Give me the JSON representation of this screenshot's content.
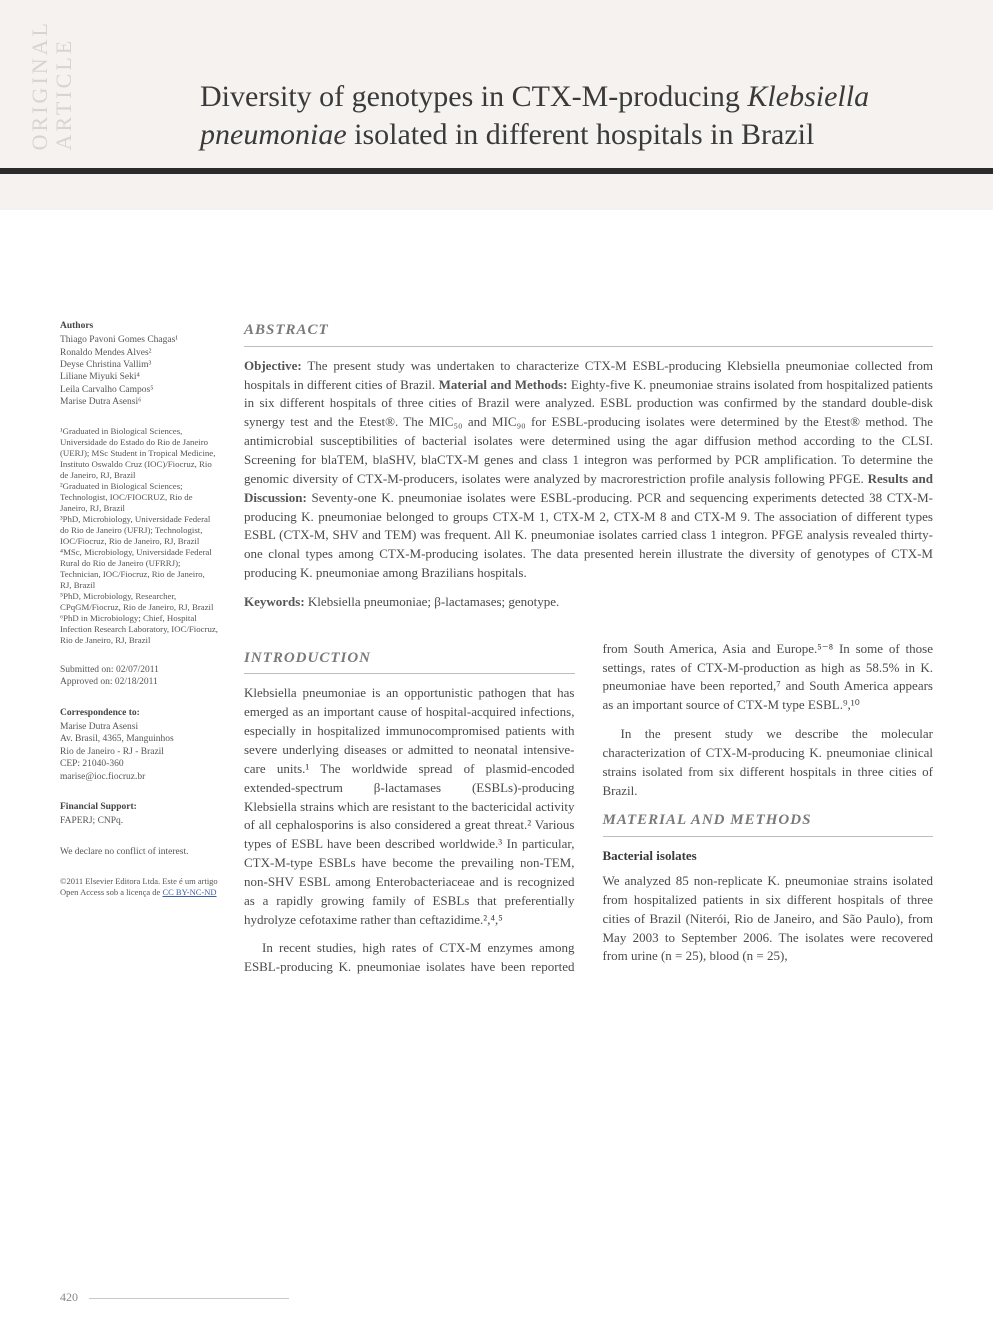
{
  "colors": {
    "page_bg": "#ffffff",
    "band_bg": "#f5f2f0",
    "rule": "#2b2b2b",
    "body_text": "#4a4a4a",
    "sidebar_text": "#555555",
    "heading_gray": "#7a7a7a",
    "divider": "#bdbdbd",
    "sidetab": "#d8d4d0",
    "link": "#3a5fa8"
  },
  "typography": {
    "title_fontsize_pt": 22,
    "body_fontsize_pt": 10,
    "sidebar_fontsize_pt": 7,
    "section_head_fontsize_pt": 11
  },
  "side_tab": {
    "line1": "ORIGINAL",
    "line2": "ARTICLE"
  },
  "title": {
    "plain1": "Diversity of genotypes in CTX-M-producing ",
    "ital1": "Klebsiella pneumoniae",
    "plain2": " isolated in different hospitals in Brazil"
  },
  "sidebar": {
    "authors_head": "Authors",
    "authors": "Thiago Pavoni Gomes Chagas¹\nRonaldo Mendes Alves²\nDeyse Christina Vallim³\nLiliane Miyuki Seki⁴\nLeila Carvalho Campos⁵\nMarise Dutra Asensi⁶",
    "affiliations": "¹Graduated in Biological Sciences, Universidade do Estado do Rio de Janeiro (UERJ); MSc Student in Tropical Medicine, Instituto Oswaldo Cruz (IOC)/Fiocruz, Rio de Janeiro, RJ, Brazil\n²Graduated in Biological Sciences; Technologist, IOC/FIOCRUZ, Rio de Janeiro, RJ, Brazil\n³PhD, Microbiology, Universidade Federal do Rio de Janeiro (UFRJ); Technologist, IOC/Fiocruz, Rio de Janeiro, RJ, Brazil\n⁴MSc, Microbiology, Universidade Federal Rural do Rio de Janeiro (UFRRJ); Technician, IOC/Fiocruz, Rio de Janeiro, RJ, Brazil\n⁵PhD, Microbiology, Researcher, CPqGM/Fiocruz, Rio de Janeiro, RJ, Brazil\n⁶PhD in Microbiology; Chief, Hospital Infection Research Laboratory, IOC/Fiocruz, Rio de Janeiro, RJ, Brazil",
    "submitted": "Submitted on: 02/07/2011\nApproved on: 02/18/2011",
    "correspondence_head": "Correspondence to:",
    "correspondence": "Marise Dutra Asensi\nAv. Brasil, 4365, Manguinhos\nRio de Janeiro - RJ - Brazil\nCEP: 21040-360\nmarise@ioc.fiocruz.br",
    "support_head": "Financial Support:",
    "support": "FAPERJ; CNPq.",
    "conflict": "We declare no conflict of interest.",
    "copyright_pre": "©2011 Elsevier Editora Ltda. Este é um artigo Open Access sob a licença de ",
    "copyright_link": "CC BY-NC-ND"
  },
  "abstract": {
    "head": "ABSTRACT",
    "objective_lead": "Objective:",
    "objective": " The present study was undertaken to characterize CTX-M ESBL-producing Klebsiella pneumoniae collected from hospitals in different cities of Brazil. ",
    "methods_lead": "Material and Methods:",
    "methods": " Eighty-five K. pneumoniae strains isolated from hospitalized patients in six different hospitals of three cities of Brazil were analyzed. ESBL production was confirmed by the standard double-disk synergy test and the Etest®. The MIC₅₀ and MIC₉₀ for ESBL-producing isolates were determined by the Etest® method. The antimicrobial susceptibilities of bacterial isolates were determined using the agar diffusion method according to the CLSI. Screening for blaTEM, blaSHV, blaCTX-M genes and class 1 integron was performed by PCR amplification. To determine the genomic diversity of CTX-M-producers, isolates were analyzed by macrorestriction profile analysis following PFGE. ",
    "results_lead": "Results and Discussion:",
    "results": " Seventy-one K. pneumoniae isolates were ESBL-producing. PCR and sequencing experiments detected 38 CTX-M-producing K. pneumoniae belonged to groups CTX-M 1, CTX-M 2, CTX-M 8 and CTX-M 9. The association of different types ESBL (CTX-M, SHV and TEM) was frequent. All K. pneumoniae isolates carried class 1 integron. PFGE analysis revealed thirty-one clonal types among CTX-M-producing isolates. The data presented herein illustrate the diversity of genotypes of CTX-M producing K. pneumoniae among Brazilians hospitals.",
    "keywords_lead": "Keywords:",
    "keywords": " Klebsiella pneumoniae; β-lactamases; genotype."
  },
  "intro": {
    "head": "INTRODUCTION",
    "p1": "Klebsiella pneumoniae is an opportunistic pathogen that has emerged as an important cause of hospital-acquired infections, especially in hospitalized immunocompromised patients with severe underlying diseases or admitted to neonatal intensive-care units.¹ The worldwide spread of plasmid-encoded extended-spectrum β-lactamases (ESBLs)-producing Klebsiella strains which are resistant to the bactericidal activity of all cephalosporins is also considered a great threat.² Various types of ESBL have been described worldwide.³ In particular, CTX-M-type ESBLs have become the prevailing non-TEM, non-SHV ESBL among Enterobacteriaceae and is recognized as a rapidly growing family of ESBLs that preferentially hydrolyze cefotaxime rather than ceftazidime.²,⁴,⁵",
    "p2": "In recent studies, high rates of CTX-M enzymes among ESBL-producing K. pneumoniae isolates have been reported from South America, Asia and Europe.⁵⁻⁸ In some of those settings, rates of CTX-M-production as high as 58.5% in K. pneumoniae have been reported,⁷ and South America appears as an important source of CTX-M type ESBL.⁹,¹⁰",
    "p3": "In the present study we describe the molecular characterization of CTX-M-producing K. pneumoniae clinical strains isolated from six different hospitals in three cities of Brazil."
  },
  "mm": {
    "head": "MATERIAL AND METHODS",
    "sub1": "Bacterial isolates",
    "p1": "We analyzed 85 non-replicate K. pneumoniae strains isolated from hospitalized patients in six different hospitals of three cities of Brazil (Niterói, Rio de Janeiro, and São Paulo), from May 2003 to September 2006. The isolates were recovered from urine (n = 25), blood (n = 25),"
  },
  "page_number": "420"
}
